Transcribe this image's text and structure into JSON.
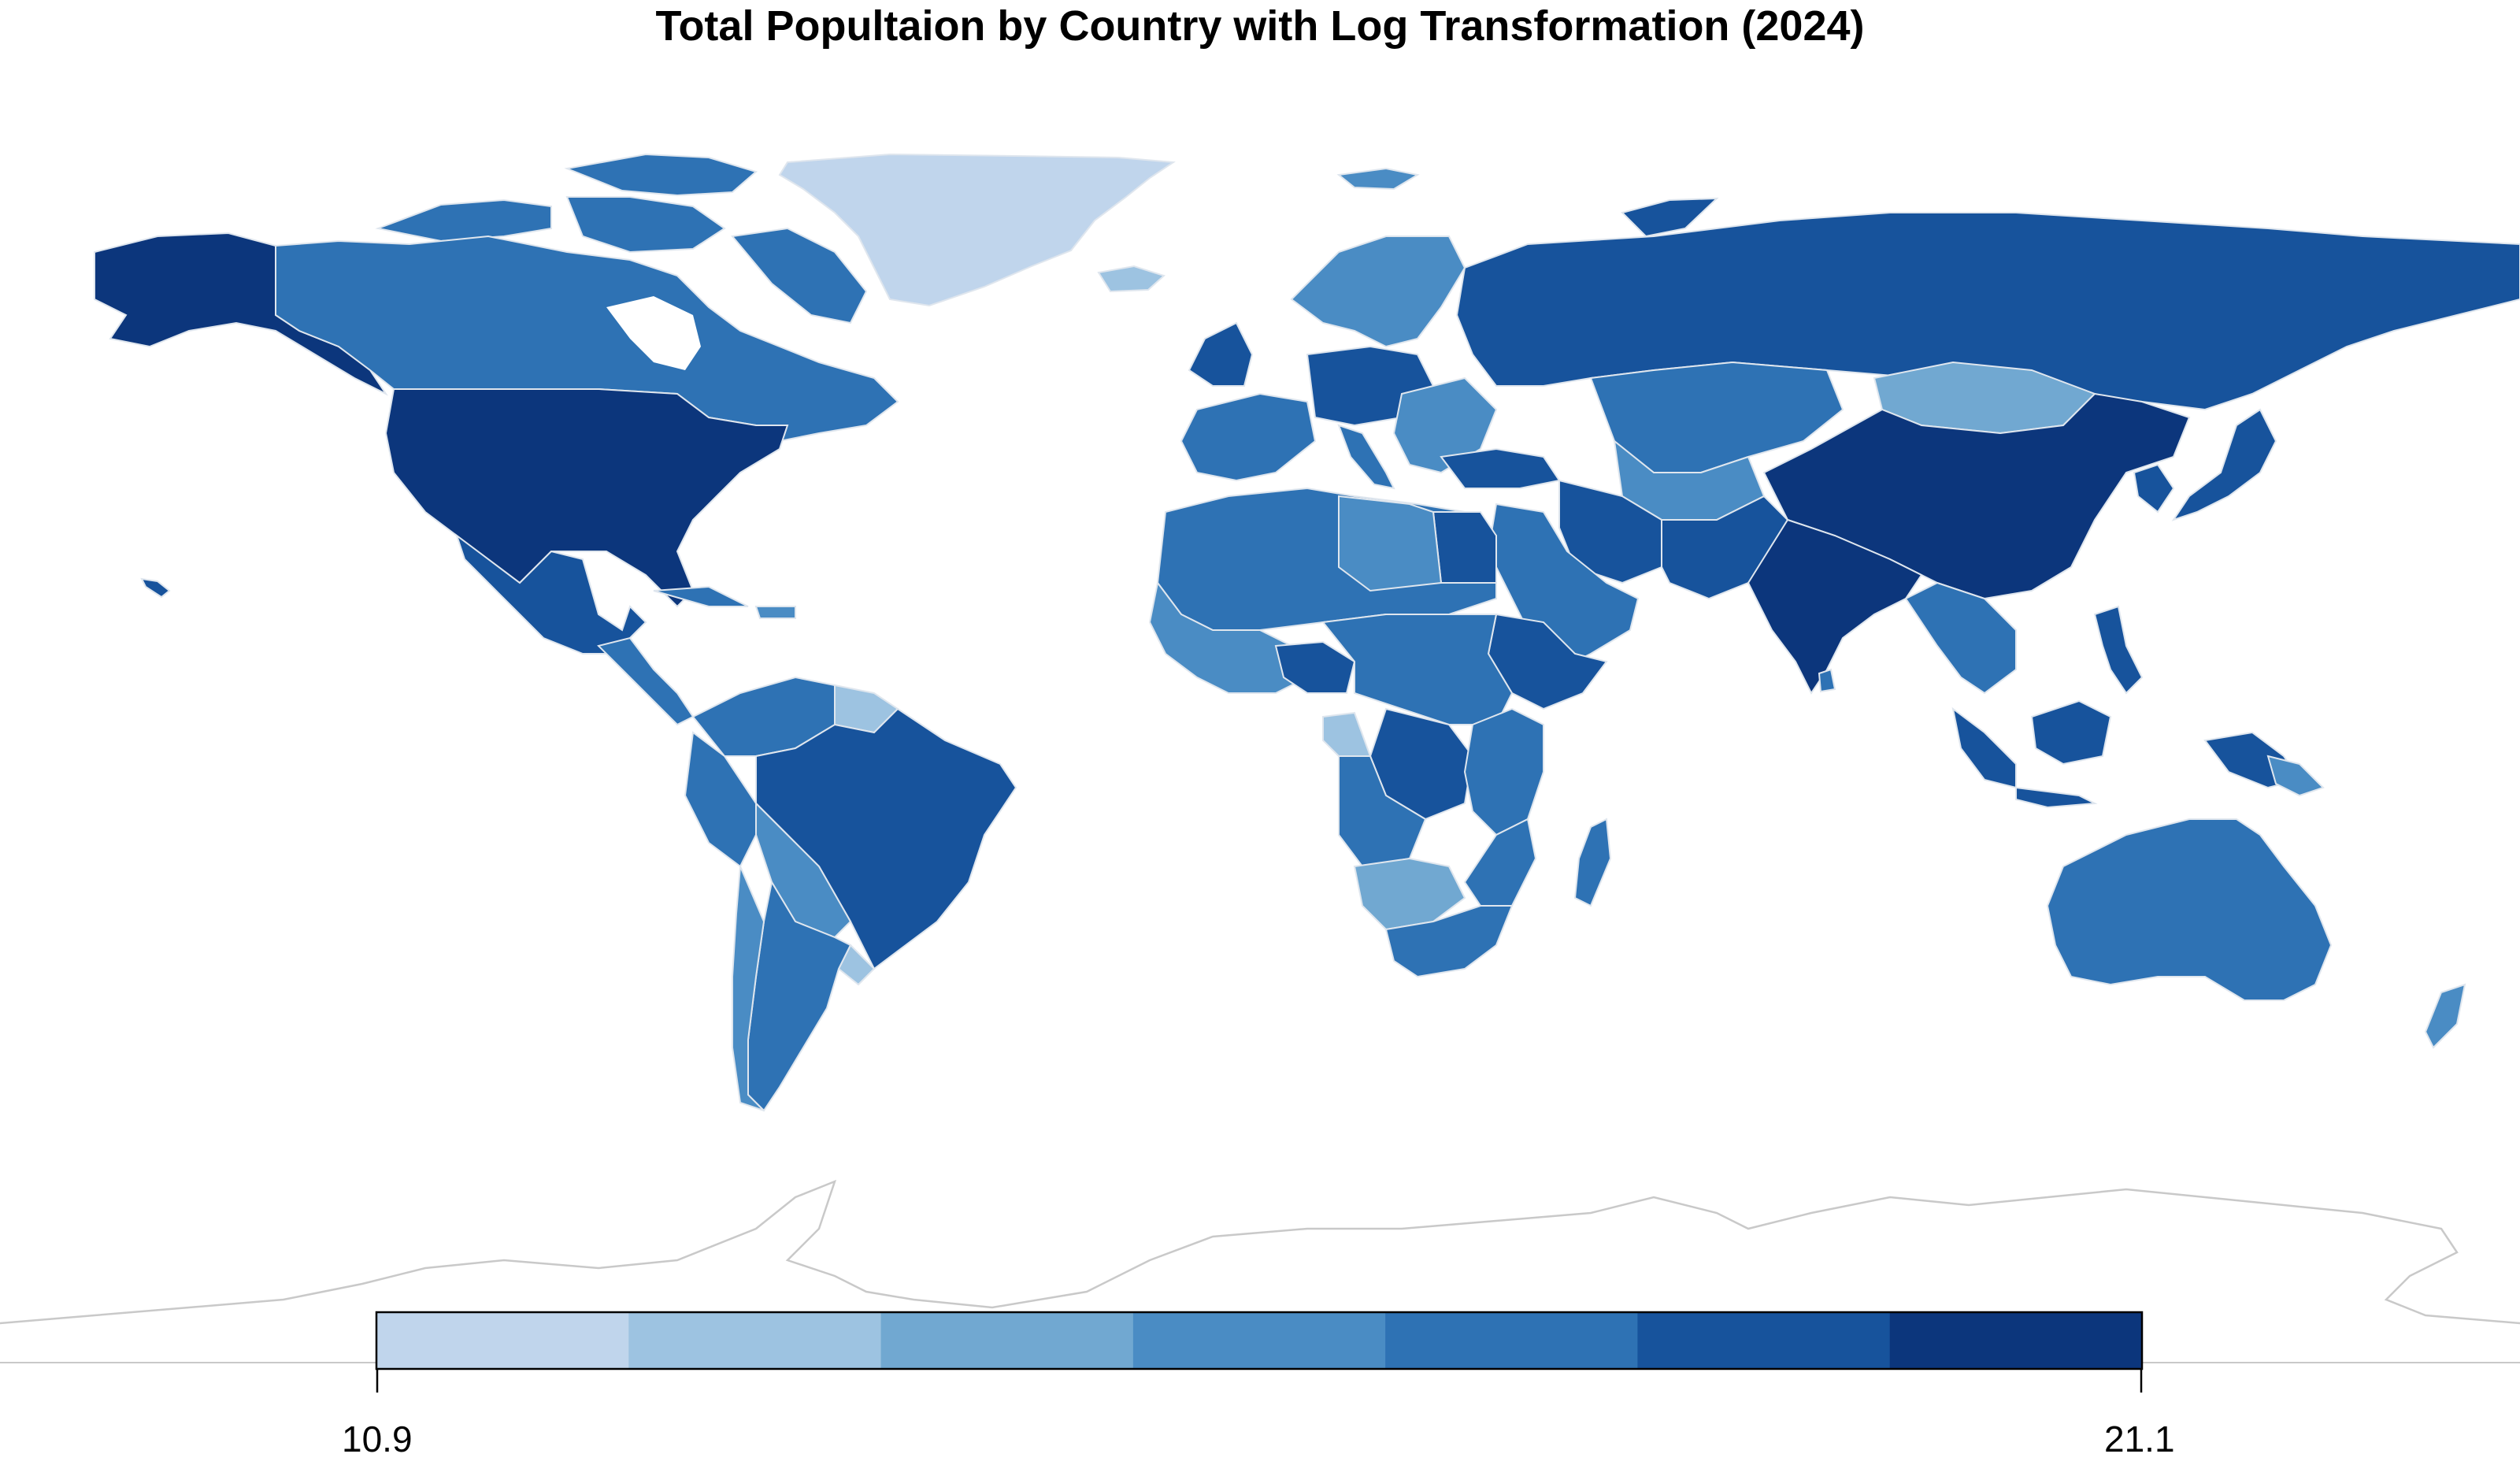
{
  "title": "Total Popultaion by Country with Log Transformation (2024)",
  "legend": {
    "min_label": "10.9",
    "max_label": "21.1",
    "min": 10.9,
    "max": 21.1,
    "bins": 7,
    "colors": [
      "#c0d5ec",
      "#9dc3e1",
      "#71a8d1",
      "#4a8cc4",
      "#2e72b4",
      "#17539c",
      "#0c367c"
    ]
  },
  "colors": {
    "border": "#dfe6ee",
    "antarctica_outline": "#c9c9c9",
    "baseline": "#c9c9c9"
  }
}
